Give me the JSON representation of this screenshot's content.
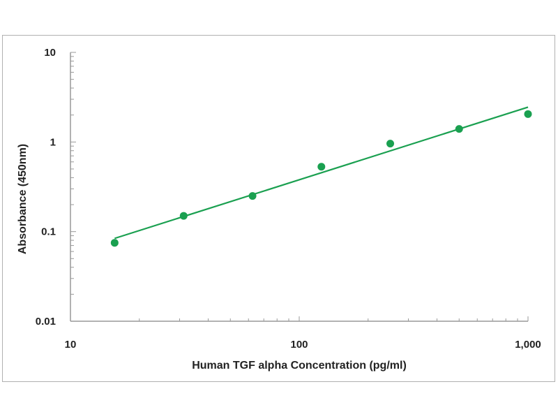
{
  "chart_data": {
    "type": "scatter",
    "xlabel": "Human TGF alpha Concentration (pg/ml)",
    "ylabel": "Absorbance (450nm)",
    "x_scale": "log",
    "y_scale": "log",
    "xlim": [
      10,
      1000
    ],
    "ylim": [
      0.01,
      10
    ],
    "x_ticks": [
      {
        "v": 10,
        "label": "10"
      },
      {
        "v": 100,
        "label": "100"
      },
      {
        "v": 1000,
        "label": "1,000"
      }
    ],
    "y_ticks": [
      {
        "v": 10,
        "label": "10"
      },
      {
        "v": 1,
        "label": "1"
      },
      {
        "v": 0.1,
        "label": "0.1"
      },
      {
        "v": 0.01,
        "label": "0.01"
      }
    ],
    "grid": false,
    "points": {
      "x": [
        15.6,
        31.25,
        62.5,
        125,
        250,
        500,
        1000
      ],
      "y": [
        0.075,
        0.15,
        0.25,
        0.53,
        0.96,
        1.4,
        2.05
      ]
    },
    "fit_line": {
      "x": [
        15.6,
        1000
      ],
      "y": [
        0.084,
        2.45
      ]
    },
    "color": "#1aa050"
  }
}
